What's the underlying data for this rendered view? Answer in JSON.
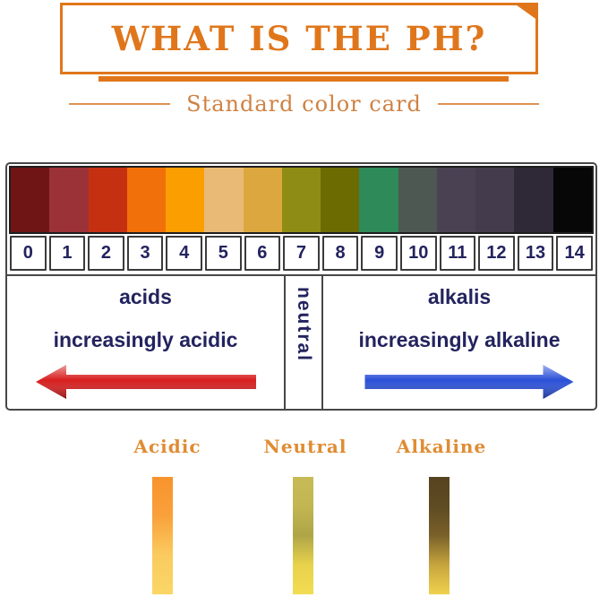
{
  "header": {
    "title": "WHAT IS THE PH?",
    "subtitle": "Standard color card",
    "accent_color": "#E0761B",
    "subtitle_color": "#D08142"
  },
  "card": {
    "swatches": [
      {
        "ph": "0",
        "color": "#701515"
      },
      {
        "ph": "1",
        "color": "#9B3237"
      },
      {
        "ph": "2",
        "color": "#C53110"
      },
      {
        "ph": "3",
        "color": "#F1700A"
      },
      {
        "ph": "4",
        "color": "#FB9E02"
      },
      {
        "ph": "5",
        "color": "#E9BA75"
      },
      {
        "ph": "6",
        "color": "#DCA73E"
      },
      {
        "ph": "7",
        "color": "#8F8C15"
      },
      {
        "ph": "8",
        "color": "#6B6B02"
      },
      {
        "ph": "9",
        "color": "#2E8A58"
      },
      {
        "ph": "10",
        "color": "#4D5852"
      },
      {
        "ph": "11",
        "color": "#4A4253"
      },
      {
        "ph": "12",
        "color": "#443C4C"
      },
      {
        "ph": "13",
        "color": "#2E2837"
      },
      {
        "ph": "14",
        "color": "#070707"
      }
    ],
    "text_color": "#23235F",
    "sections": {
      "acids": {
        "label": "acids",
        "direction_label": "increasingly acidic",
        "arrow_color": "#D71F1F",
        "arrow_direction": "left"
      },
      "neutral": {
        "label": "neutral"
      },
      "alkalis": {
        "label": "alkalis",
        "direction_label": "increasingly alkaline",
        "arrow_color": "#2B50D8",
        "arrow_direction": "right"
      }
    }
  },
  "samples": [
    {
      "label": "Acidic",
      "gradient": [
        "#F8932C",
        "#F9A13B",
        "#FACB5F",
        "#FBD667"
      ]
    },
    {
      "label": "Neutral",
      "gradient": [
        "#C7BB57",
        "#C2B652",
        "#AFA547",
        "#E8D24C",
        "#F2DC52"
      ]
    },
    {
      "label": "Alkaline",
      "gradient": [
        "#564420",
        "#5E4B22",
        "#7A612A",
        "#C6A53E",
        "#F1D14E"
      ]
    }
  ],
  "sample_label_color": "#E08C33"
}
